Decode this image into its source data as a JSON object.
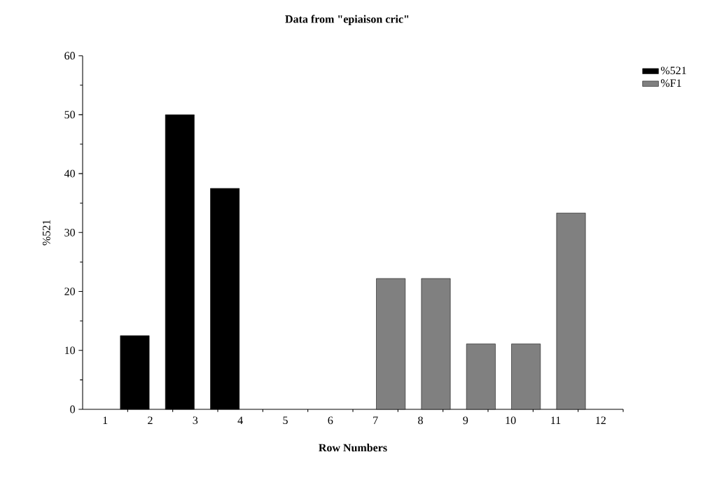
{
  "chart_data": {
    "type": "bar",
    "title": "Data from \"epiaison cric\"",
    "xlabel": "Row Numbers",
    "ylabel": "%521",
    "categories": [
      "1",
      "2",
      "3",
      "4",
      "5",
      "6",
      "7",
      "8",
      "9",
      "10",
      "11",
      "12"
    ],
    "series": [
      {
        "name": "%521",
        "color": "#000000",
        "values": [
          null,
          12.5,
          50,
          37.5,
          null,
          null,
          null,
          null,
          null,
          null,
          null,
          null
        ]
      },
      {
        "name": "%F1",
        "color": "#808080",
        "values": [
          null,
          null,
          null,
          null,
          null,
          null,
          22.2,
          22.2,
          11.1,
          11.1,
          33.3,
          null
        ]
      }
    ],
    "ylim": [
      0,
      60
    ],
    "yticks": [
      0,
      10,
      20,
      30,
      40,
      50,
      60
    ],
    "grid": false,
    "legend": "top right"
  }
}
